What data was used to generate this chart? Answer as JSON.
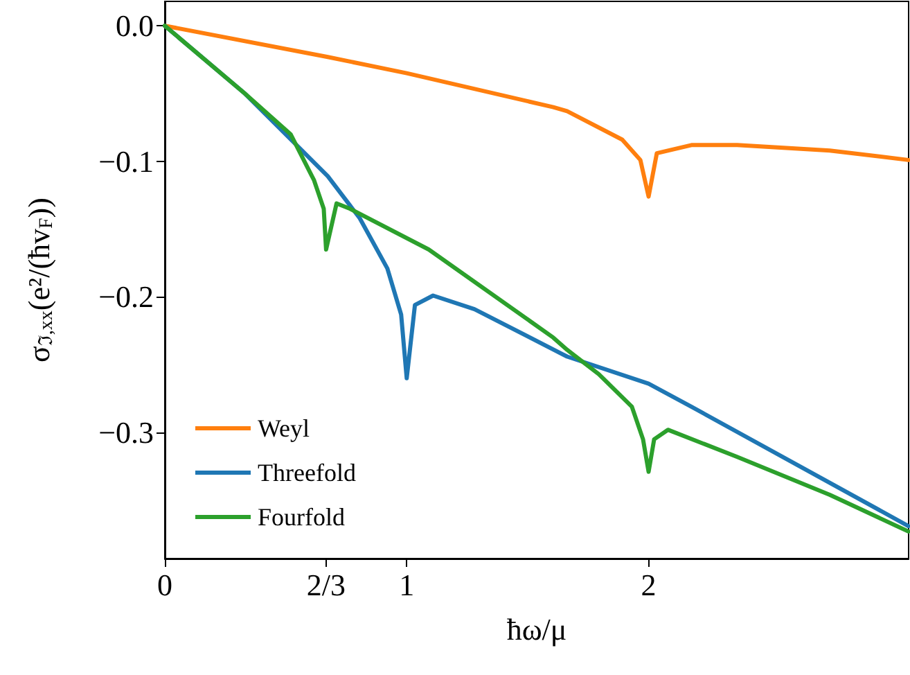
{
  "chart_data": {
    "type": "line",
    "xlabel": "ħω/μ",
    "ylabel": "σ$_{ℑ,xx}$(e²/(ħv$_{F}$))",
    "xlim": [
      0,
      3.075
    ],
    "ylim": [
      -0.393,
      0.018
    ],
    "xticks": [
      0,
      {
        "value": 0.6667,
        "label": "2/3"
      },
      1,
      2
    ],
    "yticks": [
      {
        "value": 0,
        "label": "0.0"
      },
      {
        "value": -0.1,
        "label": "−0.1"
      },
      {
        "value": -0.2,
        "label": "−0.2"
      },
      {
        "value": -0.3,
        "label": "−0.3"
      }
    ],
    "grid": false,
    "legend": "bottom left",
    "marker": "none",
    "line_style": "solid",
    "series": [
      {
        "name": "Weyl",
        "color": "#ff7f0e",
        "x": [
          0,
          0.674,
          1,
          1.606,
          1.663,
          1.891,
          1.966,
          2,
          2.034,
          2.177,
          2.366,
          2.749,
          3.074
        ],
        "values": [
          0,
          -0.023,
          -0.035,
          -0.06,
          -0.063,
          -0.084,
          -0.099,
          -0.126,
          -0.094,
          -0.088,
          -0.088,
          -0.092,
          -0.099
        ]
      },
      {
        "name": "Threefold",
        "color": "#1f77b4",
        "x": [
          0,
          0.331,
          0.674,
          0.806,
          0.92,
          0.977,
          1,
          1.034,
          1.109,
          1.28,
          1.663,
          2,
          2.177,
          3.074
        ],
        "values": [
          0,
          -0.05,
          -0.111,
          -0.142,
          -0.179,
          -0.213,
          -0.26,
          -0.206,
          -0.199,
          -0.209,
          -0.244,
          -0.264,
          -0.281,
          -0.369
        ]
      },
      {
        "name": "Fourfold",
        "color": "#2ca02c",
        "x": [
          0,
          0.331,
          0.52,
          0.617,
          0.657,
          0.6667,
          0.71,
          0.766,
          1.091,
          1.606,
          1.663,
          1.794,
          1.931,
          1.977,
          2,
          2.023,
          2.08,
          2.366,
          2.749,
          3.074
        ],
        "values": [
          0,
          -0.05,
          -0.08,
          -0.114,
          -0.135,
          -0.165,
          -0.131,
          -0.135,
          -0.165,
          -0.23,
          -0.239,
          -0.257,
          -0.281,
          -0.305,
          -0.329,
          -0.305,
          -0.298,
          -0.318,
          -0.346,
          -0.373
        ]
      }
    ]
  }
}
